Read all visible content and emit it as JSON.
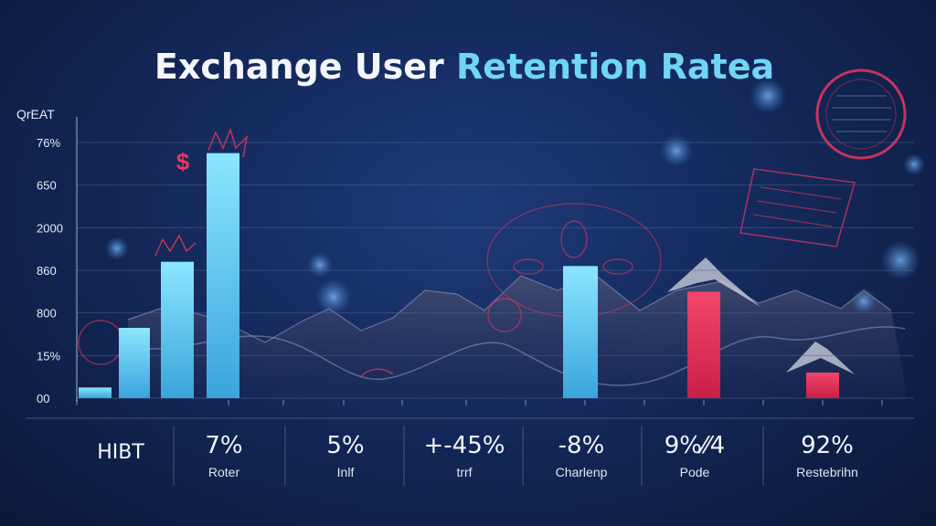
{
  "colors": {
    "cyan": "#5fd3f3",
    "pink": "#e8375c",
    "grid": "#51648c",
    "white": "#f2f5fb"
  },
  "chart_data": {
    "type": "bar",
    "title_part1": "Exchange User ",
    "title_part2": "Retention Ratea",
    "ylabel": "QrEAT",
    "y_ticks": [
      "76%",
      "650",
      "2000",
      "860",
      "800",
      "15%",
      "00"
    ],
    "ylim": [
      0,
      6
    ],
    "bars": [
      {
        "value": 0.25,
        "color": "cyan"
      },
      {
        "value": 1.65,
        "color": "cyan"
      },
      {
        "value": 3.2,
        "color": "cyan"
      },
      {
        "value": 5.75,
        "color": "cyan"
      },
      {
        "value": 3.1,
        "color": "cyan"
      },
      {
        "value": 2.5,
        "color": "pink"
      },
      {
        "value": 0.6,
        "color": "pink"
      }
    ],
    "stats": [
      {
        "value": "HIBT",
        "label": ""
      },
      {
        "value": "7%",
        "label": "Roter"
      },
      {
        "value": "5%",
        "label": "Inlf"
      },
      {
        "value": "+-45%",
        "label": "trrf"
      },
      {
        "value": "-8%",
        "label": "Charlenp"
      },
      {
        "value": "9%⁄⁄4",
        "label": "Pode"
      },
      {
        "value": "92%",
        "label": "Restebrihn"
      }
    ],
    "decor_symbol": "$"
  }
}
